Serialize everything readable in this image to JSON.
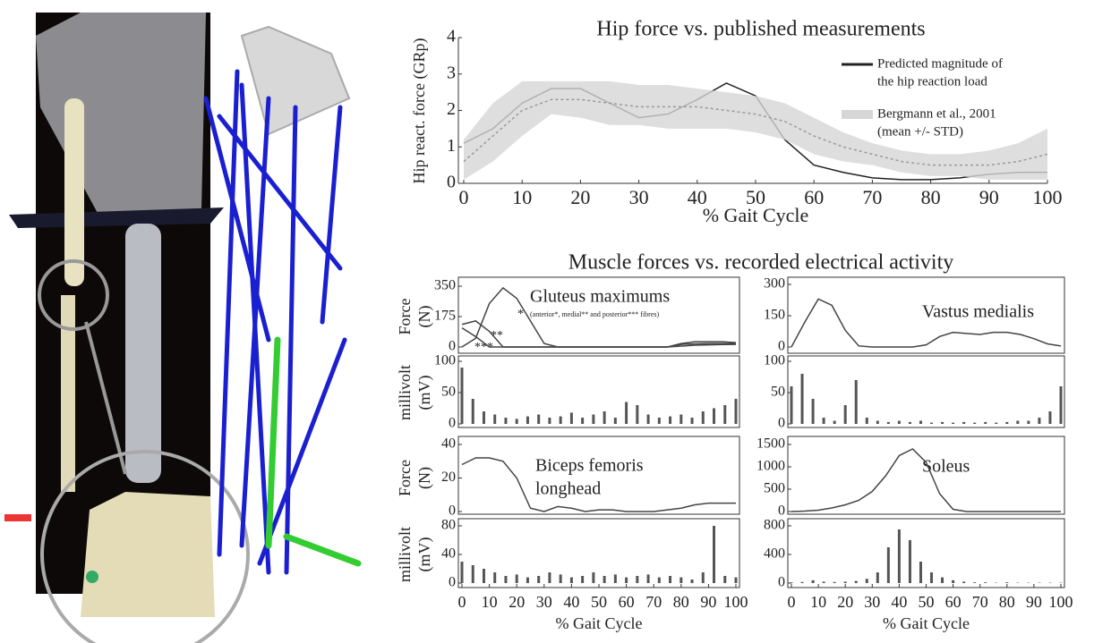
{
  "figure": {
    "muscle_section_title": "Muscle forces vs. recorded electrical activity"
  },
  "chart_data": [
    {
      "type": "line",
      "title": "Hip force vs. published measurements",
      "xlabel": "% Gait Cycle",
      "ylabel": "Hip react. force (GRp)",
      "x": [
        0,
        5,
        10,
        15,
        20,
        25,
        30,
        35,
        40,
        45,
        50,
        55,
        60,
        65,
        70,
        75,
        80,
        85,
        90,
        95,
        100
      ],
      "xlim": [
        0,
        100
      ],
      "xticks": [
        0,
        10,
        20,
        30,
        40,
        50,
        60,
        70,
        80,
        90,
        100
      ],
      "ylim": [
        0,
        4
      ],
      "yticks": [
        0,
        1,
        2,
        3,
        4
      ],
      "series": [
        {
          "name": [
            "Predicted magnitude of",
            "the hip reaction load"
          ],
          "color": "#222222",
          "values": [
            1.1,
            1.5,
            2.2,
            2.6,
            2.6,
            2.2,
            1.8,
            1.9,
            2.3,
            2.75,
            2.4,
            1.2,
            0.5,
            0.3,
            0.15,
            0.1,
            0.1,
            0.15,
            0.25,
            0.3,
            0.3
          ]
        },
        {
          "name": [
            "Bergmann et al., 2001",
            "(mean +/- STD)"
          ],
          "color": "#d6d6d6",
          "values": [
            0.6,
            1.3,
            2.0,
            2.3,
            2.3,
            2.2,
            2.1,
            2.1,
            2.1,
            2.0,
            1.9,
            1.7,
            1.3,
            1.0,
            0.8,
            0.6,
            0.5,
            0.5,
            0.5,
            0.6,
            0.8
          ],
          "upper": [
            1.2,
            2.2,
            2.8,
            2.8,
            2.8,
            2.8,
            2.7,
            2.7,
            2.6,
            2.5,
            2.4,
            2.2,
            1.8,
            1.4,
            1.1,
            0.9,
            0.8,
            0.8,
            0.9,
            1.1,
            1.5
          ],
          "lower": [
            0.1,
            0.6,
            1.3,
            1.9,
            1.8,
            1.6,
            1.6,
            1.5,
            1.5,
            1.5,
            1.4,
            1.2,
            0.8,
            0.6,
            0.5,
            0.3,
            0.2,
            0.2,
            0.1,
            0.1,
            0.1
          ]
        }
      ]
    },
    {
      "type": "line",
      "ylabel": [
        "Force",
        "(N)"
      ],
      "annotations": [
        "Gluteus maximums",
        "(anterior*, medial** and posterior*** fibres)",
        "*",
        "**",
        "***"
      ],
      "x": [
        0,
        5,
        10,
        15,
        20,
        25,
        30,
        35,
        40,
        45,
        50,
        55,
        60,
        65,
        70,
        75,
        80,
        85,
        90,
        95,
        100
      ],
      "xlim": [
        0,
        100
      ],
      "ylim": [
        0,
        350
      ],
      "yticks": [
        0,
        175,
        350
      ],
      "series": [
        {
          "color": "#444444",
          "values": [
            0,
            50,
            250,
            340,
            280,
            150,
            20,
            0,
            0,
            0,
            0,
            0,
            0,
            0,
            0,
            0,
            20,
            30,
            30,
            30,
            25
          ]
        },
        {
          "color": "#444444",
          "values": [
            130,
            150,
            90,
            0,
            0,
            0,
            0,
            0,
            0,
            0,
            0,
            0,
            0,
            0,
            0,
            0,
            15,
            18,
            20,
            20,
            20
          ]
        },
        {
          "color": "#444444",
          "values": [
            110,
            60,
            0,
            0,
            0,
            0,
            0,
            0,
            0,
            0,
            0,
            0,
            0,
            0,
            0,
            0,
            5,
            10,
            12,
            14,
            15
          ]
        }
      ]
    },
    {
      "type": "bar",
      "ylabel": [
        "millivolt",
        "(mV)"
      ],
      "x": [
        0,
        4,
        8,
        12,
        16,
        20,
        24,
        28,
        32,
        36,
        40,
        44,
        48,
        52,
        56,
        60,
        64,
        68,
        72,
        76,
        80,
        84,
        88,
        92,
        96,
        100
      ],
      "xlim": [
        0,
        100
      ],
      "ylim": [
        0,
        100
      ],
      "yticks": [
        0,
        50,
        100
      ],
      "color": "#555555",
      "values": [
        90,
        40,
        20,
        15,
        10,
        8,
        12,
        15,
        10,
        12,
        18,
        10,
        15,
        20,
        10,
        35,
        30,
        15,
        10,
        12,
        15,
        10,
        20,
        25,
        30,
        40
      ]
    },
    {
      "type": "line",
      "ylabel": [
        "Force",
        "(N)"
      ],
      "annotations": [
        "Biceps femoris",
        "longhead"
      ],
      "x": [
        0,
        5,
        10,
        15,
        20,
        25,
        30,
        35,
        40,
        45,
        50,
        55,
        60,
        65,
        70,
        75,
        80,
        85,
        90,
        95,
        100
      ],
      "xlim": [
        0,
        100
      ],
      "ylim": [
        0,
        40
      ],
      "yticks": [
        0,
        20,
        40
      ],
      "series": [
        {
          "color": "#444444",
          "values": [
            28,
            32,
            32,
            30,
            20,
            2,
            0,
            3,
            2,
            0,
            1,
            1,
            0,
            0,
            0,
            1,
            2,
            4,
            5,
            5,
            5
          ]
        }
      ]
    },
    {
      "type": "bar",
      "ylabel": [
        "millivolt",
        "(mV)"
      ],
      "xlabel": "% Gait Cycle",
      "x": [
        0,
        4,
        8,
        12,
        16,
        20,
        24,
        28,
        32,
        36,
        40,
        44,
        48,
        52,
        56,
        60,
        64,
        68,
        72,
        76,
        80,
        84,
        88,
        92,
        96,
        100
      ],
      "xlim": [
        0,
        100
      ],
      "xticks": [
        0,
        10,
        20,
        30,
        40,
        50,
        60,
        70,
        80,
        90,
        100
      ],
      "ylim": [
        0,
        80
      ],
      "yticks": [
        0,
        40,
        80
      ],
      "color": "#555555",
      "values": [
        30,
        25,
        20,
        15,
        10,
        12,
        8,
        10,
        15,
        12,
        8,
        10,
        15,
        10,
        12,
        8,
        10,
        12,
        8,
        10,
        8,
        5,
        15,
        80,
        10,
        8
      ]
    },
    {
      "type": "line",
      "annotations": [
        "Vastus medialis"
      ],
      "x": [
        0,
        5,
        10,
        15,
        20,
        25,
        30,
        35,
        40,
        45,
        50,
        55,
        60,
        65,
        70,
        75,
        80,
        85,
        90,
        95,
        100
      ],
      "xlim": [
        0,
        100
      ],
      "ylim": [
        0,
        300
      ],
      "yticks": [
        0,
        150,
        300
      ],
      "series": [
        {
          "color": "#444444",
          "values": [
            0,
            120,
            230,
            200,
            80,
            5,
            0,
            0,
            0,
            0,
            10,
            50,
            70,
            65,
            60,
            70,
            70,
            60,
            40,
            15,
            5
          ]
        }
      ]
    },
    {
      "type": "bar",
      "x": [
        0,
        4,
        8,
        12,
        16,
        20,
        24,
        28,
        32,
        36,
        40,
        44,
        48,
        52,
        56,
        60,
        64,
        68,
        72,
        76,
        80,
        84,
        88,
        92,
        96,
        100
      ],
      "xlim": [
        0,
        100
      ],
      "ylim": [
        0,
        100
      ],
      "yticks": [
        0,
        50,
        100
      ],
      "color": "#555555",
      "values": [
        60,
        80,
        40,
        10,
        5,
        30,
        70,
        10,
        5,
        3,
        5,
        3,
        5,
        2,
        3,
        2,
        3,
        2,
        3,
        2,
        3,
        5,
        5,
        10,
        20,
        60
      ]
    },
    {
      "type": "line",
      "annotations": [
        "Soleus"
      ],
      "x": [
        0,
        5,
        10,
        15,
        20,
        25,
        30,
        35,
        40,
        45,
        50,
        55,
        60,
        65,
        70,
        75,
        80,
        85,
        90,
        95,
        100
      ],
      "xlim": [
        0,
        100
      ],
      "ylim": [
        0,
        1500
      ],
      "yticks": [
        0,
        500,
        1000,
        1500
      ],
      "series": [
        {
          "color": "#444444",
          "values": [
            0,
            10,
            30,
            80,
            150,
            250,
            450,
            800,
            1250,
            1400,
            1100,
            400,
            50,
            0,
            0,
            0,
            0,
            0,
            0,
            0,
            0
          ]
        }
      ]
    },
    {
      "type": "bar",
      "xlabel": "% Gait Cycle",
      "x": [
        0,
        4,
        8,
        12,
        16,
        20,
        24,
        28,
        32,
        36,
        40,
        44,
        48,
        52,
        56,
        60,
        64,
        68,
        72,
        76,
        80,
        84,
        88,
        92,
        96,
        100
      ],
      "xlim": [
        0,
        100
      ],
      "xticks": [
        0,
        10,
        20,
        30,
        40,
        50,
        60,
        70,
        80,
        90,
        100
      ],
      "ylim": [
        0,
        800
      ],
      "yticks": [
        0,
        400,
        800
      ],
      "color": "#555555",
      "values": [
        10,
        15,
        40,
        20,
        15,
        20,
        30,
        60,
        150,
        500,
        750,
        600,
        300,
        150,
        80,
        40,
        20,
        10,
        10,
        5,
        10,
        5,
        5,
        5,
        5,
        5
      ]
    }
  ]
}
